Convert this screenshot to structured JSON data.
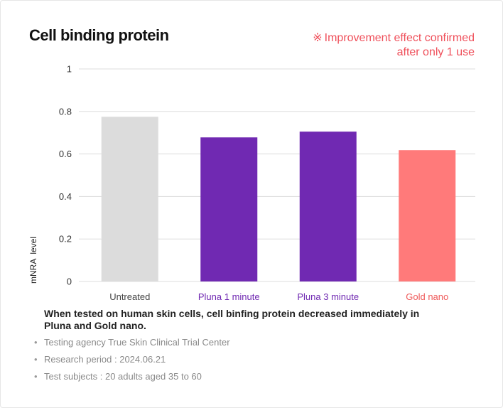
{
  "header": {
    "title": "Cell binding protein",
    "note_mark": "※",
    "note_line1": "Improvement effect confirmed",
    "note_line2": "after only 1 use"
  },
  "colors": {
    "note": "#ef4f5a",
    "untreated": "#dcdcdc",
    "pluna": "#7029b2",
    "gold": "#ff7a7a",
    "grid": "#dddddd"
  },
  "chart_data": {
    "type": "bar",
    "title": "Cell binding protein",
    "ylabel": "mNRA  level",
    "xlabel": "",
    "ylim": [
      0,
      1
    ],
    "yticks": [
      "0",
      "0.2",
      "0.4",
      "0.6",
      "0.8",
      "1"
    ],
    "grid": true,
    "categories": [
      "Untreated",
      "Pluna 1 minute",
      "Pluna 3 minute",
      "Gold nano"
    ],
    "values": [
      0.775,
      0.678,
      0.705,
      0.618
    ],
    "bar_colors": [
      "#dcdcdc",
      "#7029b2",
      "#7029b2",
      "#ff7a7a"
    ],
    "label_colors": [
      "#444444",
      "#7029b2",
      "#7029b2",
      "#ef5a5a"
    ]
  },
  "summary": "When tested on human skin cells, cell binfing protein decreased immediately in Pluna and Gold nano.",
  "details": [
    "Testing agency True Skin Clinical Trial Center",
    "Research period : 2024.06.21",
    "Test subjects : 20 adults aged 35 to 60"
  ],
  "bullet": "•"
}
